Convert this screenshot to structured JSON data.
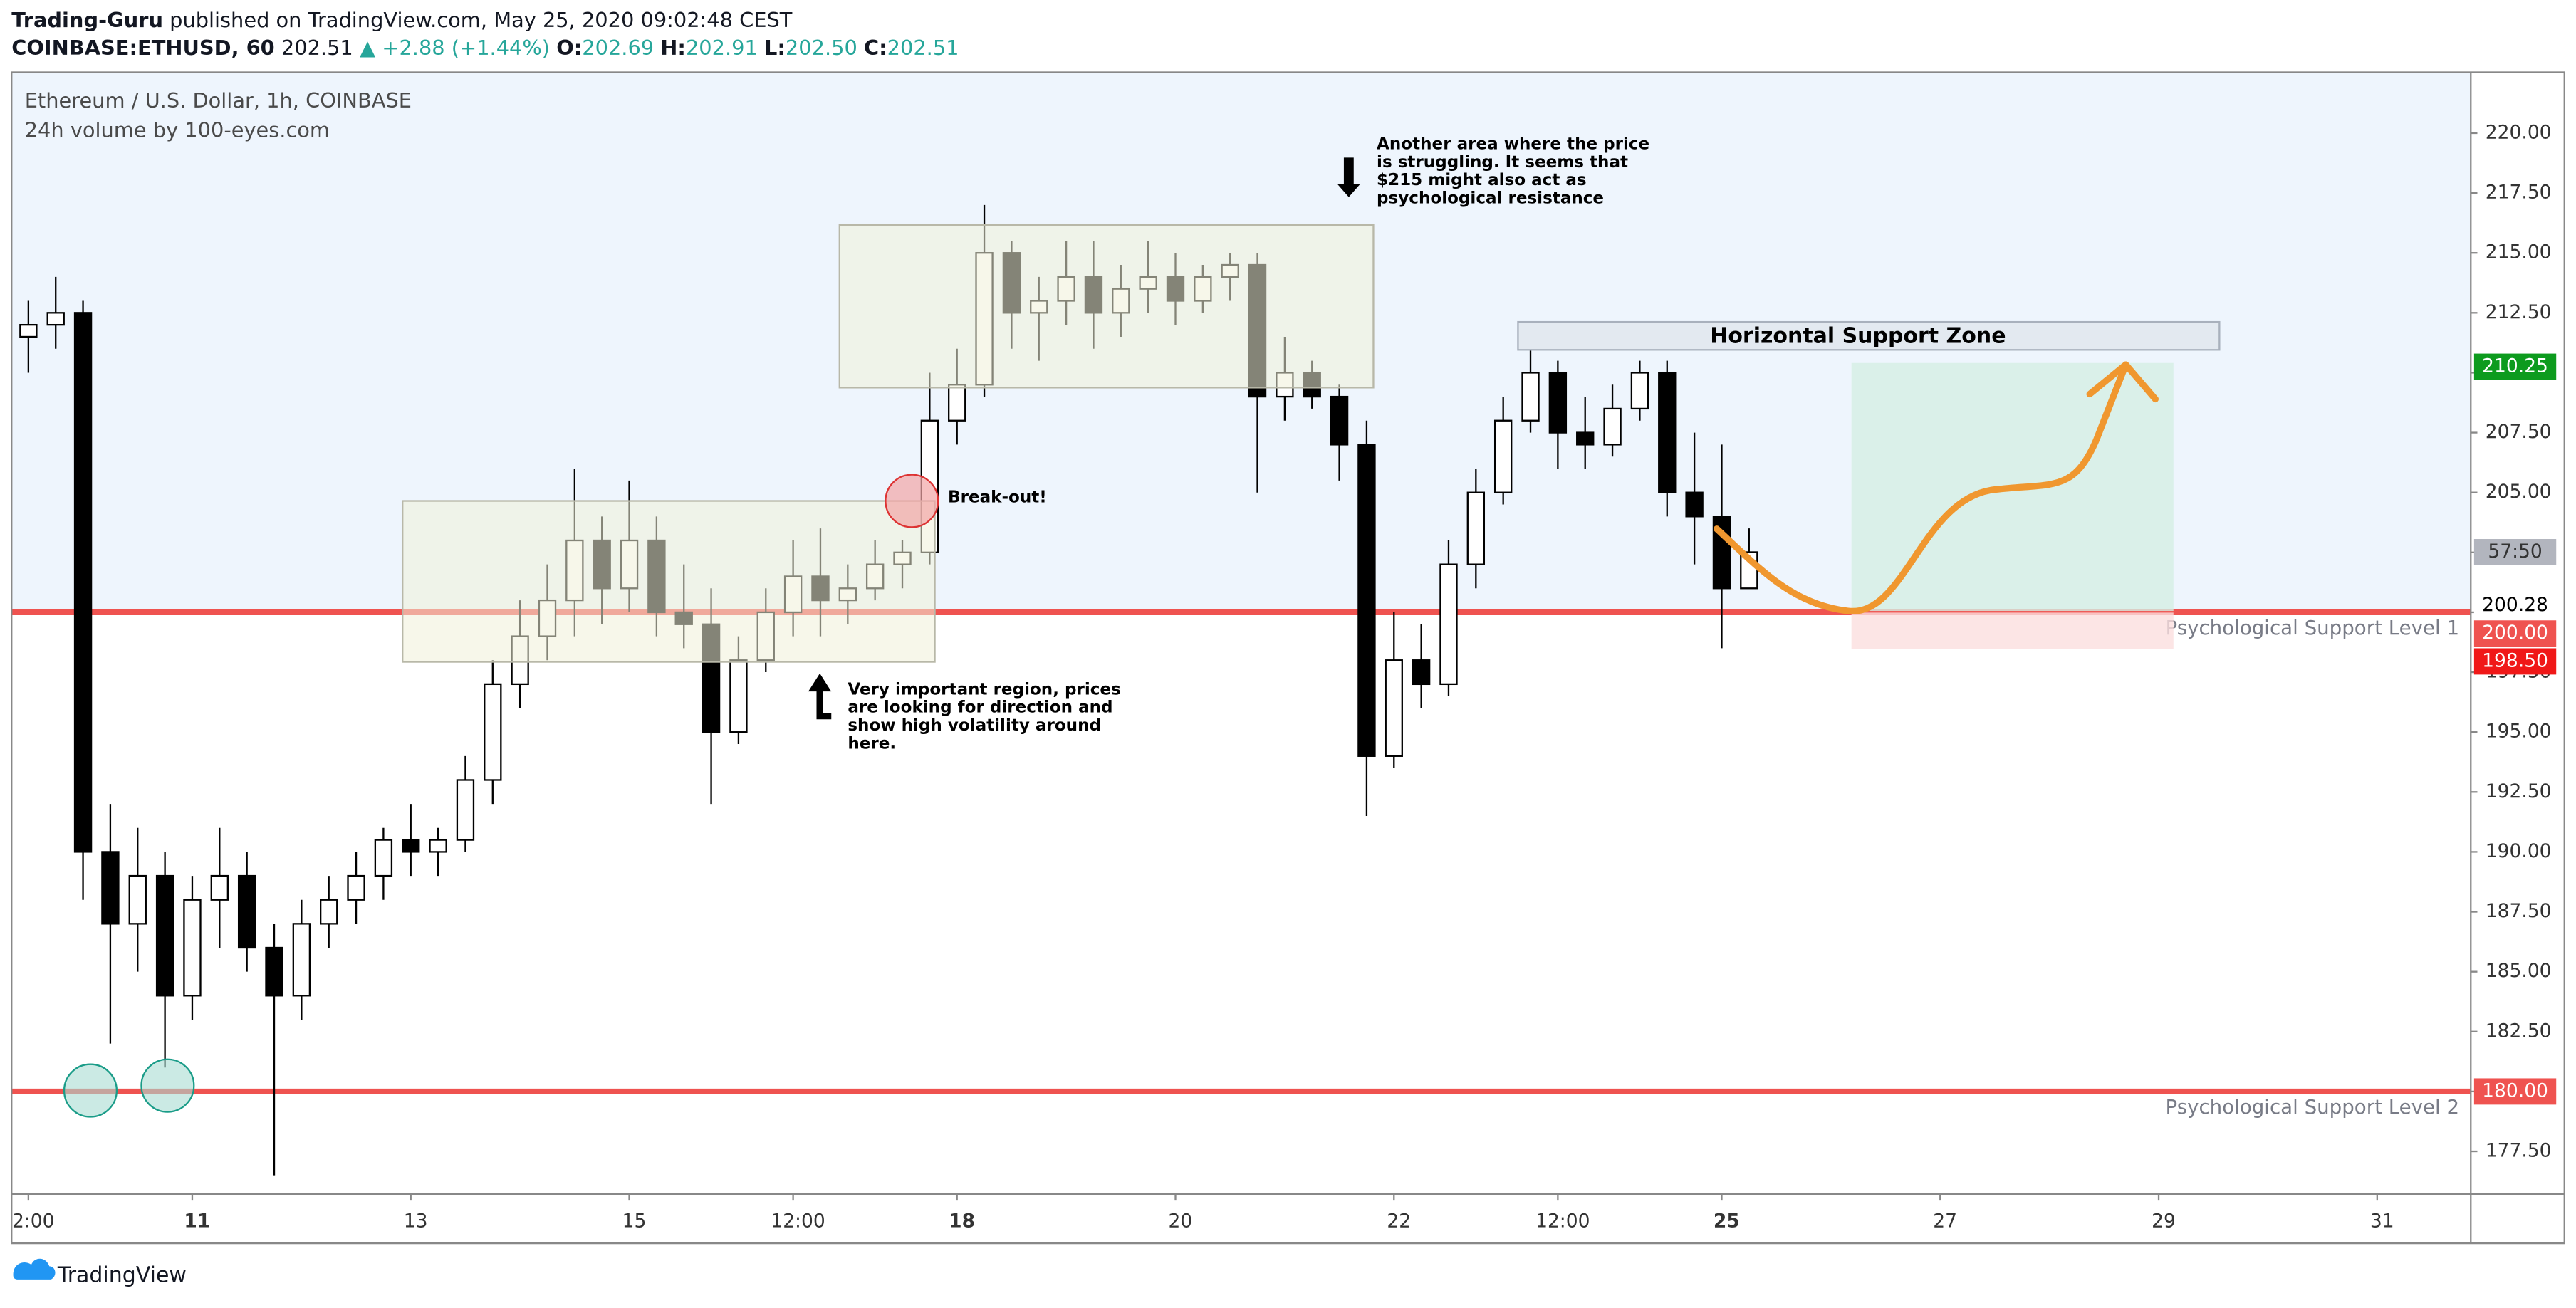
{
  "header": {
    "author": "Trading-Guru",
    "published": "published on TradingView.com, May 25, 2020 09:02:48 CEST",
    "symbol": "COINBASE:ETHUSD, 60",
    "price": "202.51",
    "change": "+2.88 (+1.44%)",
    "ohlc": [
      {
        "label": "O:",
        "value": "202.69"
      },
      {
        "label": "H:",
        "value": "202.91"
      },
      {
        "label": "L:",
        "value": "202.50"
      },
      {
        "label": "C:",
        "value": "202.51"
      }
    ]
  },
  "footer": {
    "brand": "TradingView"
  },
  "chart_data": {
    "type": "candlestick",
    "title": "Ethereum / U.S. Dollar, 1h, COINBASE",
    "subtitle": "24h volume by 100-eyes.com",
    "up_color": "#ffffff",
    "down_color": "#000000",
    "x": [
      9.5,
      9.75,
      10,
      10.25,
      10.5,
      10.75,
      11,
      11.25,
      11.5,
      11.75,
      12,
      12.25,
      12.5,
      12.75,
      13,
      13.25,
      13.5,
      13.75,
      14,
      14.25,
      14.5,
      14.75,
      15,
      15.25,
      15.5,
      15.75,
      16,
      16.25,
      16.5,
      16.75,
      17,
      17.25,
      17.5,
      17.75,
      18,
      18.25,
      18.5,
      18.75,
      19,
      19.25,
      19.5,
      19.75,
      20,
      20.25,
      20.5,
      20.75,
      21,
      21.25,
      21.5,
      21.75,
      22,
      22.25,
      22.5,
      22.75,
      23,
      23.25,
      23.5,
      23.75,
      24,
      24.25,
      24.5,
      24.75,
      25,
      25.25
    ],
    "open": [
      211.5,
      212,
      212.5,
      190,
      187,
      189,
      184,
      188,
      189,
      186,
      184,
      187,
      188,
      189,
      190.5,
      190,
      190.5,
      193,
      197,
      199,
      200.5,
      203,
      201,
      203,
      200,
      199.5,
      195,
      198,
      200,
      201.5,
      200.5,
      201,
      202,
      202.5,
      208,
      209.5,
      215,
      212.5,
      213,
      214,
      212.5,
      213.5,
      214,
      213,
      214,
      214.5,
      209,
      210,
      209,
      207,
      194,
      198,
      197,
      202,
      205,
      208,
      210,
      207.5,
      207,
      208.5,
      210,
      205,
      204,
      201
    ],
    "high": [
      213,
      214,
      213,
      192,
      191,
      190,
      189,
      191,
      190,
      187,
      188,
      189,
      190,
      191,
      192,
      191,
      194,
      198,
      200.5,
      202,
      206,
      204,
      205.5,
      204,
      202,
      201,
      199,
      201,
      203,
      203.5,
      202,
      203,
      203,
      210,
      211,
      217,
      215.5,
      214,
      215.5,
      215.5,
      214.5,
      215.5,
      215,
      214.5,
      215,
      215,
      211.5,
      210.5,
      209.5,
      208,
      200,
      199.5,
      203,
      206,
      209,
      211.5,
      210.5,
      209,
      209.5,
      210.5,
      210.5,
      207.5,
      207,
      203.5
    ],
    "low": [
      210,
      211,
      188,
      182,
      185,
      181,
      183,
      186,
      185,
      176.5,
      183,
      186,
      187,
      188,
      189,
      189,
      190,
      192,
      196,
      198,
      199,
      199.5,
      200,
      199,
      198.5,
      192,
      194.5,
      197.5,
      199,
      199,
      199.5,
      200.5,
      201,
      202,
      207,
      209,
      211,
      210.5,
      212,
      211,
      211.5,
      212.5,
      212,
      212.5,
      213,
      205,
      208,
      208.5,
      205.5,
      191.5,
      193.5,
      196,
      196.5,
      201,
      204.5,
      207.5,
      206,
      206,
      206.5,
      208,
      204,
      202,
      198.5,
      201
    ],
    "close": [
      212,
      212.5,
      190,
      187,
      189,
      184,
      188,
      189,
      186,
      184,
      187,
      188,
      189,
      190.5,
      190,
      190.5,
      193,
      197,
      199,
      200.5,
      203,
      201,
      203,
      200,
      199.5,
      195,
      198,
      200,
      201.5,
      200.5,
      201,
      202,
      202.5,
      208,
      209.5,
      215,
      212.5,
      213,
      214,
      212.5,
      213.5,
      214,
      213,
      214,
      214.5,
      209,
      210,
      209,
      207,
      194,
      198,
      197,
      202,
      205,
      208,
      210,
      207.5,
      207,
      208.5,
      210,
      205,
      204,
      201,
      202.51
    ],
    "xlim": [
      9.346,
      31.857
    ],
    "ylim": [
      175.72,
      222.54
    ],
    "xticks": [
      {
        "value": 9.5,
        "label": "2:00"
      },
      11,
      13,
      15,
      {
        "value": 16.5,
        "label": "12:00"
      },
      18,
      20,
      22,
      {
        "value": 23.5,
        "label": "12:00"
      },
      25,
      27,
      29,
      31
    ],
    "yticks": [
      {
        "value": 177.5,
        "label": "177.50"
      },
      {
        "value": 180,
        "label": "180.00"
      },
      {
        "value": 182.5,
        "label": "182.50"
      },
      {
        "value": 185,
        "label": "185.00"
      },
      {
        "value": 187.5,
        "label": "187.50"
      },
      {
        "value": 190,
        "label": "190.00"
      },
      {
        "value": 192.5,
        "label": "192.50"
      },
      {
        "value": 195,
        "label": "195.00"
      },
      {
        "value": 197.5,
        "label": "197.50"
      },
      {
        "value": 200,
        "label": "200.00"
      },
      {
        "value": 202.5,
        "label": "202.50"
      },
      {
        "value": 205,
        "label": "205.00"
      },
      {
        "value": 207.5,
        "label": "207.50"
      },
      {
        "value": 210,
        "label": "210.00"
      },
      {
        "value": 212.5,
        "label": "212.50"
      },
      {
        "value": 215,
        "label": "215.00"
      },
      {
        "value": 217.5,
        "label": "217.50"
      },
      {
        "value": 220,
        "label": "220.00"
      }
    ],
    "grid": false,
    "levels": [
      {
        "value": 200,
        "label": "Psychological Support Level 1",
        "color": "#ef5350"
      },
      {
        "value": 180,
        "label": "Psychological Support Level 2",
        "color": "#ef5350"
      }
    ],
    "price_tags": [
      {
        "value": 210.25,
        "color": "#0d9b1e",
        "text_color": "#ffffff"
      },
      {
        "value": 200.28,
        "color": "#ffffff",
        "text_color": "#000000"
      },
      {
        "value": 200,
        "label": "200.00",
        "color": "#ef5350",
        "text_color": "#ffffff"
      },
      {
        "value": 198.5,
        "label": "198.50",
        "color": "#f01818",
        "text_color": "#ffffff"
      },
      {
        "value": 180,
        "label": "180.00",
        "color": "#ef5350",
        "text_color": "#ffffff"
      }
    ],
    "countdown": {
      "label": "57:50",
      "color": "#b2b5be"
    },
    "annotations": {
      "resistance": [
        "Another area where the price",
        "is struggling. It seems that",
        "$215 might also act as",
        "psychological resistance"
      ],
      "breakout": "Break-out!",
      "region": [
        "Very important region, prices",
        "are looking for direction and",
        "show high volatility around",
        "here."
      ],
      "zone": "Horizontal Support Zone"
    }
  }
}
